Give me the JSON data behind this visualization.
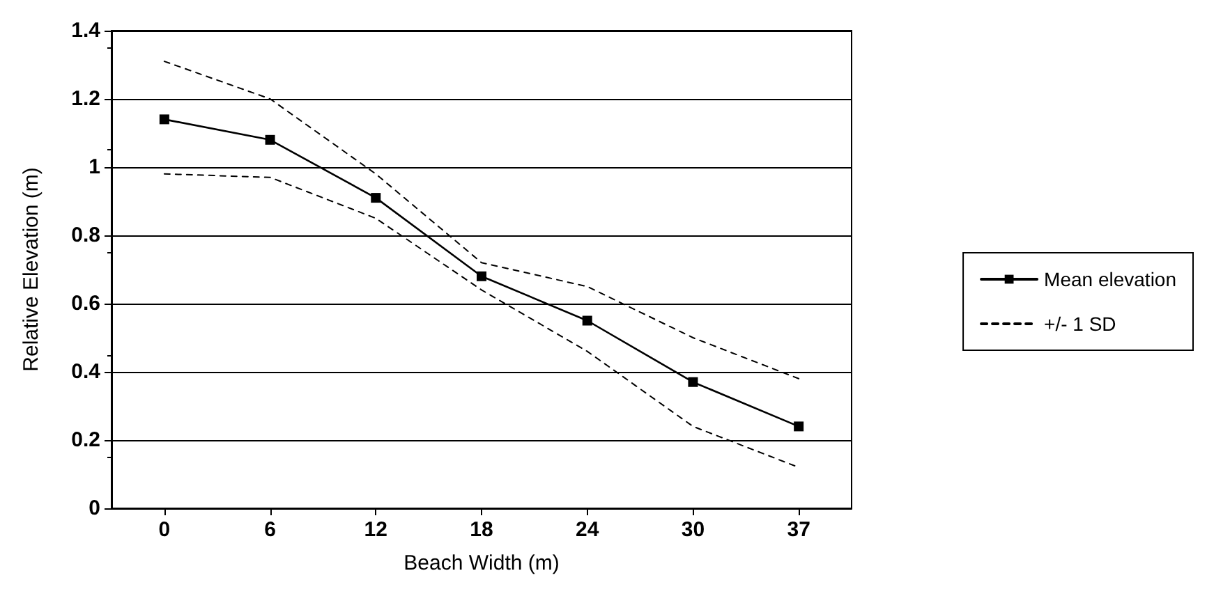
{
  "chart_data": {
    "type": "line",
    "xlabel": "Beach Width (m)",
    "ylabel": "Relative Elevation (m)",
    "categories": [
      "0",
      "6",
      "12",
      "18",
      "24",
      "30",
      "37"
    ],
    "series": [
      {
        "name": "Mean elevation",
        "color": "#000000",
        "values": [
          1.14,
          1.08,
          0.91,
          0.68,
          0.55,
          0.37,
          0.24
        ],
        "marker": "square",
        "line_style": "solid"
      },
      {
        "name": "+/- 1 SD",
        "color": "#000000",
        "values": [
          1.31,
          1.2,
          0.98,
          0.72,
          0.65,
          0.5,
          0.38
        ],
        "marker": "none",
        "line_style": "dashed"
      },
      {
        "color": "#000000",
        "values": [
          0.98,
          0.97,
          0.85,
          0.64,
          0.46,
          0.24,
          0.12
        ],
        "marker": "none",
        "line_style": "dashed"
      }
    ],
    "ylim": [
      0,
      1.4
    ],
    "yticks": [
      0,
      0.2,
      0.4,
      0.6,
      0.8,
      1,
      1.2,
      1.4
    ],
    "grid": "y",
    "legend": "right"
  }
}
